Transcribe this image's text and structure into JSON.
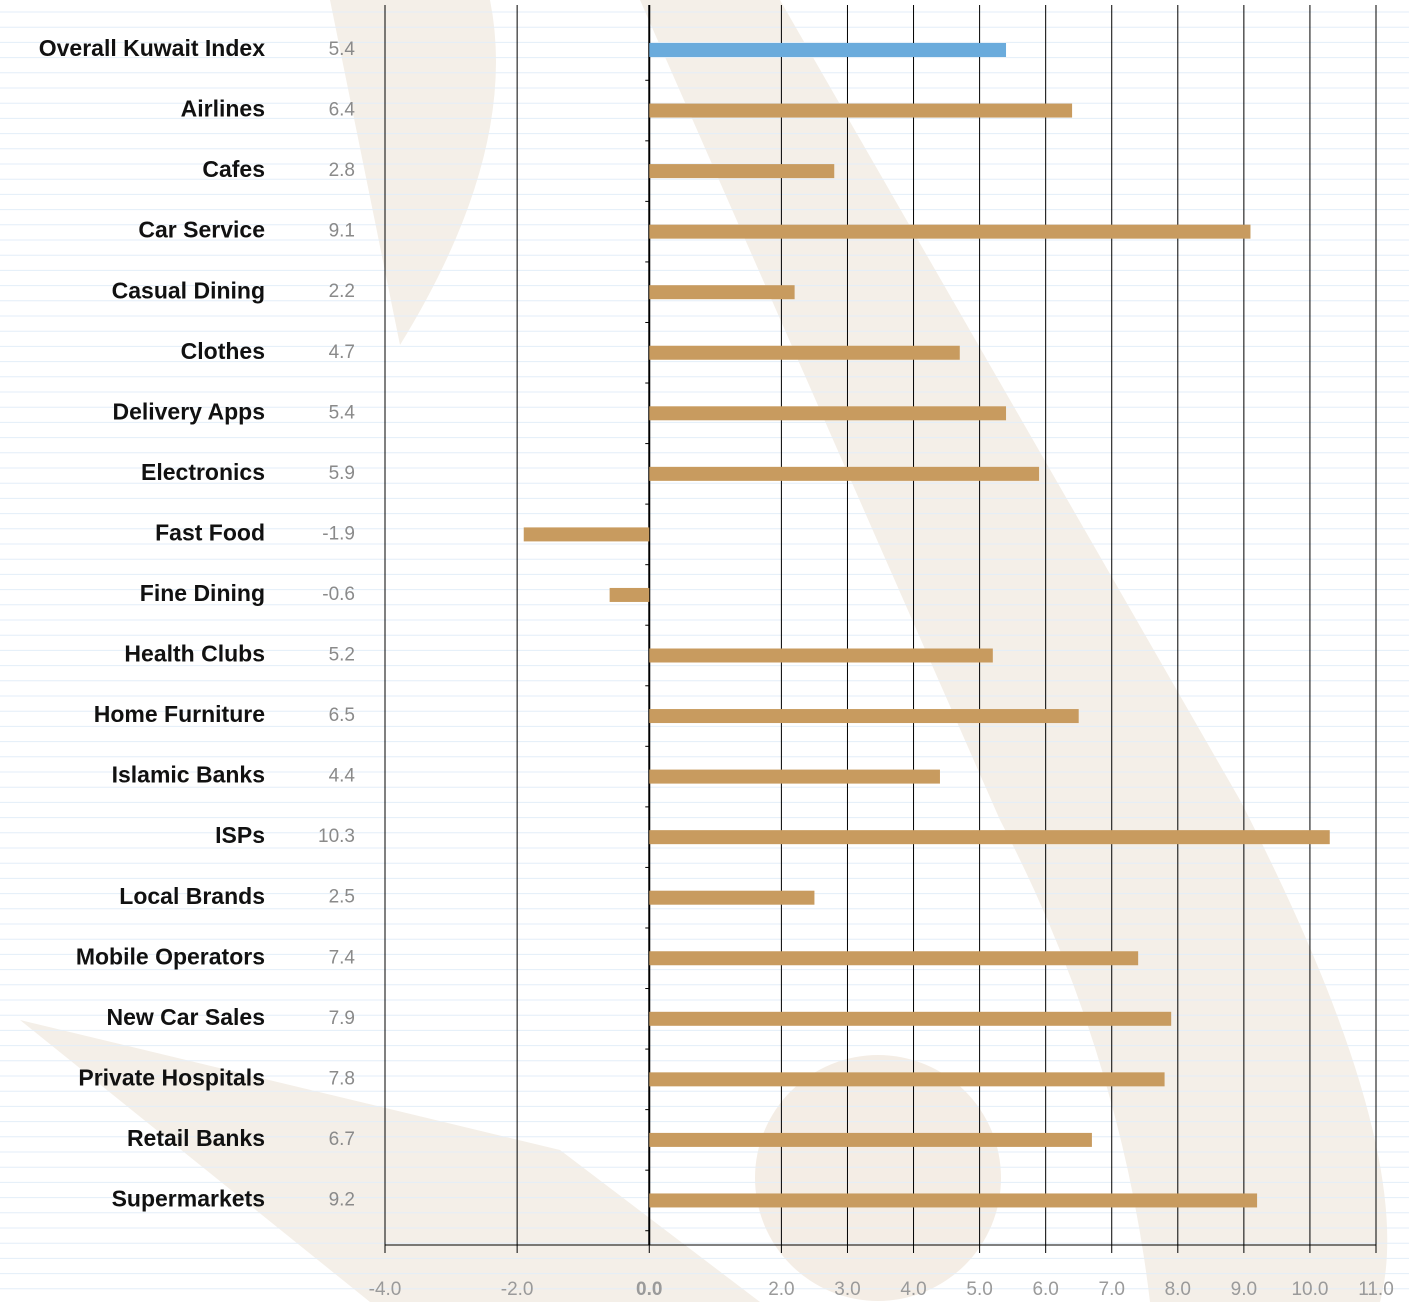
{
  "chart_data": {
    "type": "hbar",
    "categories": [
      "Overall Kuwait Index",
      "Airlines",
      "Cafes",
      "Car Service",
      "Casual Dining",
      "Clothes",
      "Delivery Apps",
      "Electronics",
      "Fast Food",
      "Fine Dining",
      "Health Clubs",
      "Home Furniture",
      "Islamic Banks",
      "ISPs",
      "Local Brands",
      "Mobile Operators",
      "New Car Sales",
      "Private Hospitals",
      "Retail Banks",
      "Supermarkets"
    ],
    "values": [
      5.4,
      6.4,
      2.8,
      9.1,
      2.2,
      4.7,
      5.4,
      5.9,
      -1.9,
      -0.6,
      5.2,
      6.5,
      4.4,
      10.3,
      2.5,
      7.4,
      7.9,
      7.8,
      6.7,
      9.2
    ],
    "colors": [
      "#6aabdc",
      "#c89b5f",
      "#c89b5f",
      "#c89b5f",
      "#c89b5f",
      "#c89b5f",
      "#c89b5f",
      "#c89b5f",
      "#c89b5f",
      "#c89b5f",
      "#c89b5f",
      "#c89b5f",
      "#c89b5f",
      "#c89b5f",
      "#c89b5f",
      "#c89b5f",
      "#c89b5f",
      "#c89b5f",
      "#c89b5f",
      "#c89b5f"
    ],
    "xlim": [
      -4,
      11
    ],
    "xticks": [
      {
        "value": -4,
        "label": "-4.0"
      },
      {
        "value": -2,
        "label": "-2.0"
      },
      {
        "value": 0,
        "label": "0.0"
      },
      {
        "value": 2,
        "label": "2.0"
      },
      {
        "value": 3,
        "label": "3.0"
      },
      {
        "value": 4,
        "label": "4.0"
      },
      {
        "value": 5,
        "label": "5.0"
      },
      {
        "value": 6,
        "label": "6.0"
      },
      {
        "value": 7,
        "label": "7.0"
      },
      {
        "value": 8,
        "label": "8.0"
      },
      {
        "value": 9,
        "label": "9.0"
      },
      {
        "value": 10,
        "label": "10.0"
      },
      {
        "value": 11,
        "label": "11.0"
      }
    ],
    "grid": true
  }
}
